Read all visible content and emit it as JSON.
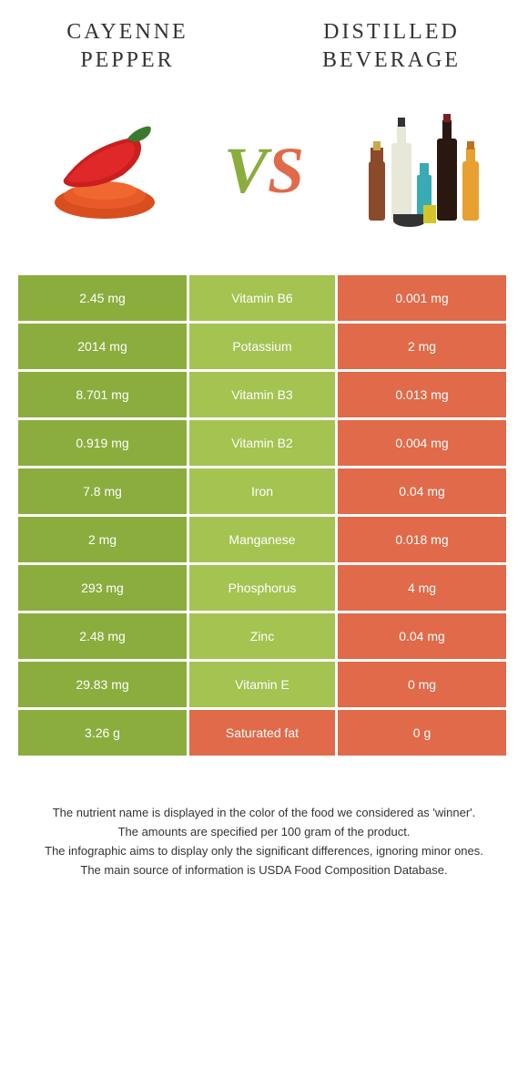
{
  "colors": {
    "green": "#8aad3e",
    "green_mid": "#a4c351",
    "orange": "#e06a49",
    "white": "#ffffff",
    "text": "#333333"
  },
  "header": {
    "left_title": "CAYENNE PEPPER",
    "right_title": "DISTILLED BEVERAGE",
    "vs_v": "V",
    "vs_s": "S"
  },
  "rows": [
    {
      "left": "2.45 mg",
      "name": "Vitamin B6",
      "right": "0.001 mg",
      "winner": "left"
    },
    {
      "left": "2014 mg",
      "name": "Potassium",
      "right": "2 mg",
      "winner": "left"
    },
    {
      "left": "8.701 mg",
      "name": "Vitamin B3",
      "right": "0.013 mg",
      "winner": "left"
    },
    {
      "left": "0.919 mg",
      "name": "Vitamin B2",
      "right": "0.004 mg",
      "winner": "left"
    },
    {
      "left": "7.8 mg",
      "name": "Iron",
      "right": "0.04 mg",
      "winner": "left"
    },
    {
      "left": "2 mg",
      "name": "Manganese",
      "right": "0.018 mg",
      "winner": "left"
    },
    {
      "left": "293 mg",
      "name": "Phosphorus",
      "right": "4 mg",
      "winner": "left"
    },
    {
      "left": "2.48 mg",
      "name": "Zinc",
      "right": "0.04 mg",
      "winner": "left"
    },
    {
      "left": "29.83 mg",
      "name": "Vitamin E",
      "right": "0 mg",
      "winner": "left"
    },
    {
      "left": "3.26 g",
      "name": "Saturated fat",
      "right": "0 g",
      "winner": "right"
    }
  ],
  "footer": {
    "line1": "The nutrient name is displayed in the color of the food we considered as 'winner'.",
    "line2": "The amounts are specified per 100 gram of the product.",
    "line3": "The infographic aims to display only the significant differences, ignoring minor ones.",
    "line4": "The main source of information is USDA Food Composition Database."
  }
}
